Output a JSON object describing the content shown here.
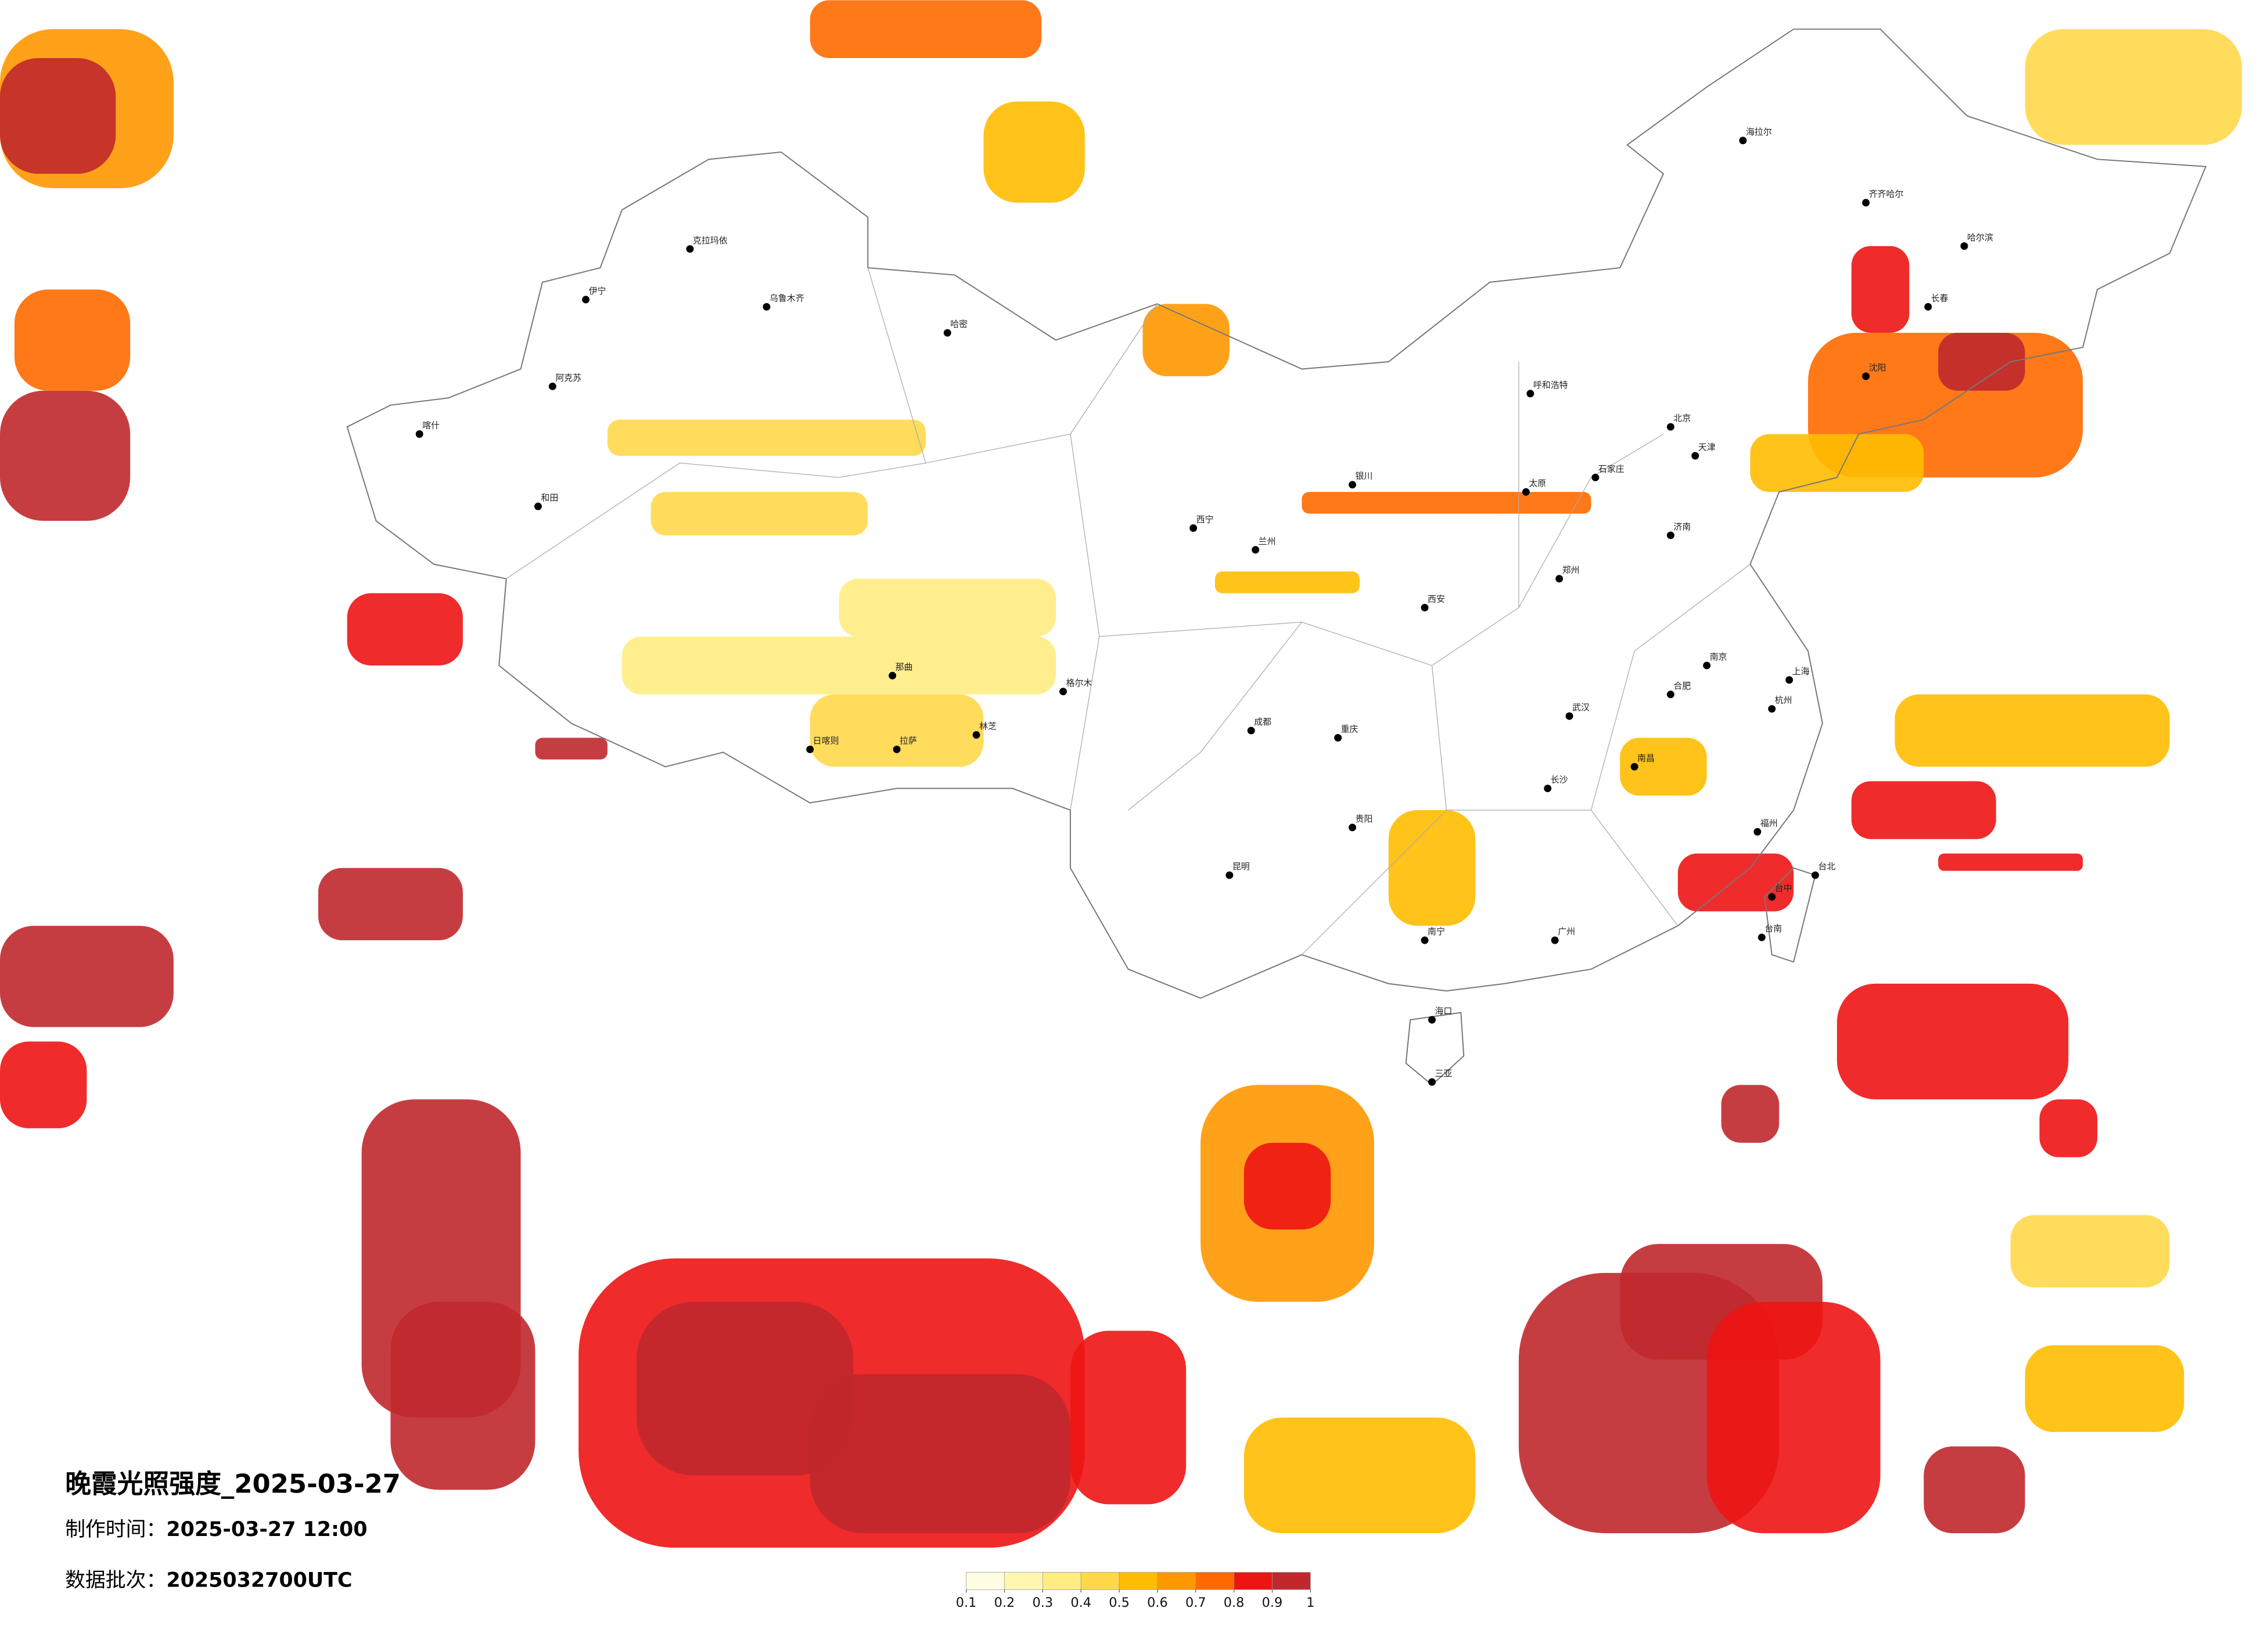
{
  "title": "晚霞光照强度_2025-03-27",
  "info": [
    {
      "label": "制作时间：",
      "value": "2025-03-27 12:00"
    },
    {
      "label": "数据批次：",
      "value": "2025032700UTC"
    }
  ],
  "colorbar": {
    "ticks": [
      0.1,
      0.2,
      0.3,
      0.4,
      0.5,
      0.6,
      0.7,
      0.8,
      0.9,
      1
    ],
    "colors": [
      "#fffde2",
      "#fff6b0",
      "#ffec82",
      "#ffd84a",
      "#ffbd00",
      "#ff9800",
      "#ff6a00",
      "#ee1414",
      "#c0282c"
    ]
  },
  "cities": [
    "北京",
    "天津",
    "上海",
    "广州",
    "重庆",
    "成都",
    "武汉",
    "西安",
    "拉萨",
    "乌鲁木齐",
    "哈尔滨",
    "长春",
    "沈阳",
    "呼和浩特",
    "银川",
    "兰州",
    "西宁",
    "昆明",
    "贵阳",
    "南宁",
    "海口",
    "福州",
    "台北",
    "杭州",
    "南京",
    "合肥",
    "郑州",
    "济南",
    "石家庄",
    "太原",
    "长沙",
    "南昌",
    "喀什",
    "和田",
    "阿克苏",
    "伊宁",
    "克拉玛依",
    "哈密",
    "格尔木",
    "海拉尔",
    "齐齐哈尔",
    "三亚",
    "台中",
    "台南",
    "那曲",
    "日喀则",
    "林芝"
  ]
}
